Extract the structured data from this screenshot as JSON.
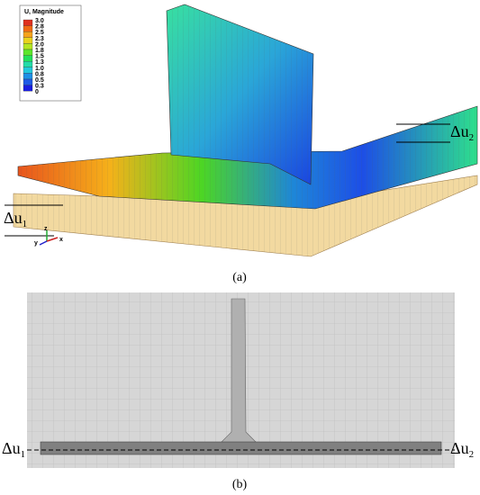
{
  "legend": {
    "title": "U, Magnitude",
    "values": [
      "3.0",
      "2.8",
      "2.5",
      "2.3",
      "2.0",
      "1.8",
      "1.5",
      "1.3",
      "1.0",
      "0.8",
      "0.5",
      "0.3",
      "0"
    ]
  },
  "panel_a": {
    "delta_1": {
      "main": "Δu",
      "sub": "1"
    },
    "delta_2": {
      "main": "Δu",
      "sub": "2"
    },
    "triad": [
      "z",
      "y",
      "x"
    ],
    "caption": "(a)"
  },
  "panel_b": {
    "delta_1": {
      "main": "Δu",
      "sub": "1"
    },
    "delta_2": {
      "main": "Δu",
      "sub": "2"
    },
    "caption": "(b)"
  }
}
